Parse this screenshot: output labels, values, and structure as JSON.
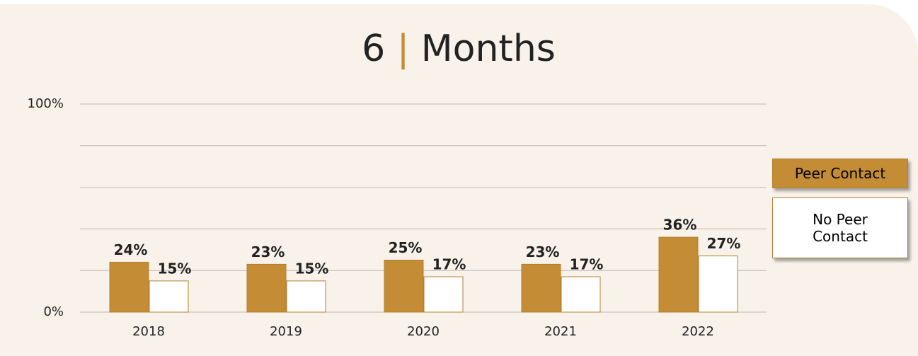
{
  "chart_data": {
    "type": "bar",
    "title": [
      "6",
      "|",
      "Months"
    ],
    "categories": [
      "2018",
      "2019",
      "2020",
      "2021",
      "2022"
    ],
    "series": [
      {
        "name": "Peer Contact",
        "color": "#c48c35",
        "values": [
          24,
          23,
          25,
          23,
          36
        ],
        "value_labels": [
          "24%",
          "23%",
          "25%",
          "23%",
          "36%"
        ]
      },
      {
        "name": "No Peer Contact",
        "color": "#ffffff",
        "values": [
          15,
          15,
          17,
          17,
          27
        ],
        "value_labels": [
          "15%",
          "15%",
          "17%",
          "17%",
          "27%"
        ]
      }
    ],
    "ylim": [
      0,
      100
    ],
    "yticks": [
      {
        "value": 0,
        "label": "0%"
      },
      {
        "value": 100,
        "label": "100%"
      }
    ],
    "grid_values": [
      0,
      20,
      40,
      60,
      80,
      100
    ],
    "grid": true,
    "legend": "right"
  }
}
